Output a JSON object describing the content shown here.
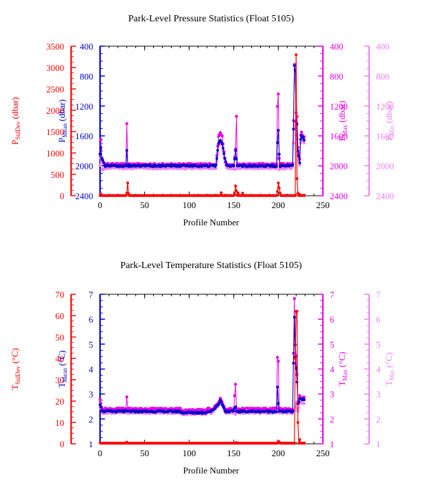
{
  "colors": {
    "red": "#ff0000",
    "blue": "#0000cc",
    "magenta": "#e600e6",
    "pink": "#ee82ee",
    "black": "#000000"
  },
  "footer_text": "",
  "chart_data": [
    {
      "type": "scatter",
      "title": "Park-Level Pressure Statistics (Float 5105)",
      "xlabel": "Profile Number",
      "xlim": [
        0,
        250
      ],
      "xticks": [
        0,
        50,
        100,
        150,
        200,
        250
      ],
      "axes": {
        "stddev": {
          "label_main": "P",
          "label_sub": "StdDev",
          "label_unit": " (dbar)",
          "lim": [
            0,
            3500
          ],
          "ticks": [
            0,
            500,
            1000,
            1500,
            2000,
            2500,
            3000,
            3500
          ],
          "inverted": false
        },
        "mean": {
          "label_main": "P",
          "label_sub": "Mean",
          "label_unit": " (dbar)",
          "lim": [
            400,
            2400
          ],
          "ticks": [
            400,
            800,
            1200,
            1600,
            2000,
            2400
          ],
          "inverted": true
        },
        "max": {
          "label_main": "P",
          "label_sub": "Max",
          "label_unit": " (dbar)",
          "lim": [
            400,
            2400
          ],
          "ticks": [
            400,
            800,
            1200,
            1600,
            2000,
            2400
          ],
          "inverted": true
        },
        "min": {
          "label_main": "P",
          "label_sub": "Min",
          "label_unit": " (dbar)",
          "lim": [
            400,
            2400
          ],
          "ticks": [
            400,
            800,
            1200,
            1600,
            2000,
            2400
          ],
          "inverted": true
        }
      },
      "series": {
        "stddev": {
          "base": 5,
          "spikes": [
            [
              1,
              40
            ],
            [
              30,
              60
            ],
            [
              31,
              300
            ],
            [
              32,
              50
            ],
            [
              136,
              70
            ],
            [
              151,
              40
            ],
            [
              152,
              230
            ],
            [
              153,
              110
            ],
            [
              155,
              60
            ],
            [
              160,
              60
            ],
            [
              199,
              100
            ],
            [
              200,
              300
            ],
            [
              201,
              180
            ],
            [
              202,
              60
            ],
            [
              220,
              3300
            ],
            [
              221,
              400
            ],
            [
              222,
              60
            ],
            [
              224,
              30
            ],
            [
              228,
              10
            ]
          ]
        },
        "mean": {
          "base": 2000,
          "points": [
            [
              0,
              1850
            ],
            [
              1,
              1750
            ],
            [
              2,
              1900
            ],
            [
              5,
              2000
            ],
            [
              29,
              1990
            ],
            [
              30,
              1800
            ],
            [
              31,
              1990
            ],
            [
              130,
              2000
            ],
            [
              133,
              1700
            ],
            [
              135,
              1650
            ],
            [
              137,
              1700
            ],
            [
              140,
              1900
            ],
            [
              142,
              2000
            ],
            [
              150,
              2000
            ],
            [
              152,
              1800
            ],
            [
              154,
              2000
            ],
            [
              198,
              2000
            ],
            [
              199,
              1700
            ],
            [
              200,
              1520
            ],
            [
              201,
              1850
            ],
            [
              202,
              2000
            ],
            [
              216,
              2000
            ],
            [
              217,
              1500
            ],
            [
              218,
              650
            ],
            [
              219,
              740
            ],
            [
              220,
              1400
            ],
            [
              221,
              1450
            ],
            [
              222,
              1800
            ],
            [
              224,
              1950
            ],
            [
              225,
              1650
            ],
            [
              226,
              1600
            ],
            [
              228,
              1620
            ],
            [
              229,
              1650
            ]
          ]
        },
        "max": {
          "base": 1980,
          "points": [
            [
              0,
              1850
            ],
            [
              1,
              1650
            ],
            [
              2,
              1900
            ],
            [
              5,
              1980
            ],
            [
              29,
              1980
            ],
            [
              30,
              1430
            ],
            [
              31,
              1980
            ],
            [
              130,
              1980
            ],
            [
              133,
              1600
            ],
            [
              135,
              1560
            ],
            [
              137,
              1600
            ],
            [
              140,
              1900
            ],
            [
              142,
              1980
            ],
            [
              150,
              1980
            ],
            [
              152,
              1780
            ],
            [
              153,
              1350
            ],
            [
              154,
              1980
            ],
            [
              198,
              1980
            ],
            [
              199,
              1200
            ],
            [
              200,
              1050
            ],
            [
              201,
              1900
            ],
            [
              202,
              1980
            ],
            [
              216,
              1980
            ],
            [
              217,
              1400
            ],
            [
              218,
              640
            ],
            [
              219,
              700
            ],
            [
              220,
              1300
            ],
            [
              221,
              1350
            ],
            [
              222,
              1750
            ],
            [
              224,
              1900
            ],
            [
              225,
              1600
            ],
            [
              226,
              1560
            ],
            [
              228,
              1600
            ],
            [
              229,
              1620
            ]
          ]
        },
        "min": {
          "base": 2030,
          "points": [
            [
              0,
              2000
            ],
            [
              1,
              1900
            ],
            [
              2,
              2050
            ],
            [
              5,
              2030
            ],
            [
              29,
              2030
            ],
            [
              30,
              1990
            ],
            [
              31,
              2030
            ],
            [
              130,
              2030
            ],
            [
              133,
              1720
            ],
            [
              135,
              1680
            ],
            [
              137,
              1720
            ],
            [
              140,
              1950
            ],
            [
              142,
              2030
            ],
            [
              150,
              2030
            ],
            [
              152,
              2050
            ],
            [
              154,
              2030
            ],
            [
              198,
              2030
            ],
            [
              199,
              1900
            ],
            [
              200,
              1850
            ],
            [
              201,
              2050
            ],
            [
              202,
              2030
            ],
            [
              216,
              2030
            ],
            [
              217,
              1700
            ],
            [
              218,
              1400
            ],
            [
              219,
              1500
            ],
            [
              220,
              1600
            ],
            [
              221,
              1650
            ],
            [
              222,
              1850
            ],
            [
              224,
              1980
            ],
            [
              225,
              1700
            ],
            [
              226,
              1650
            ],
            [
              228,
              1660
            ],
            [
              229,
              1700
            ]
          ]
        }
      }
    },
    {
      "type": "scatter",
      "title": "Park-Level Temperature Statistics (Float 5105)",
      "xlabel": "Profile Number",
      "xlim": [
        0,
        250
      ],
      "xticks": [
        0,
        50,
        100,
        150,
        200,
        250
      ],
      "axes": {
        "stddev": {
          "label_main": "T",
          "label_sub": "StdDev",
          "label_unit": " (°C)",
          "lim": [
            0,
            70
          ],
          "ticks": [
            0,
            10,
            20,
            30,
            40,
            50,
            60,
            70
          ],
          "inverted": false
        },
        "mean": {
          "label_main": "T",
          "label_sub": "Mean",
          "label_unit": " (°C)",
          "lim": [
            1,
            7
          ],
          "ticks": [
            1,
            2,
            3,
            4,
            5,
            6,
            7
          ],
          "inverted": false
        },
        "max": {
          "label_main": "T",
          "label_sub": "Max",
          "label_unit": " (°C)",
          "lim": [
            1,
            7
          ],
          "ticks": [
            1,
            2,
            3,
            4,
            5,
            6,
            7
          ],
          "inverted": false
        },
        "min": {
          "label_main": "T",
          "label_sub": "Min",
          "label_unit": " (°C)",
          "lim": [
            1,
            7
          ],
          "ticks": [
            1,
            2,
            3,
            4,
            5,
            6,
            7
          ],
          "inverted": false
        }
      },
      "series": {
        "stddev": {
          "base": 0.3,
          "spikes": [
            [
              0,
              0.5
            ],
            [
              30,
              0.8
            ],
            [
              153,
              0.6
            ],
            [
              200,
              1.2
            ],
            [
              201,
              0.8
            ],
            [
              219,
              40
            ],
            [
              220,
              62
            ],
            [
              221,
              62
            ],
            [
              222,
              10
            ],
            [
              224,
              2
            ]
          ]
        },
        "mean": {
          "base": 2.3,
          "points": [
            [
              0,
              2.6
            ],
            [
              1,
              2.5
            ],
            [
              2,
              2.35
            ],
            [
              30,
              2.35
            ],
            [
              100,
              2.25
            ],
            [
              125,
              2.3
            ],
            [
              133,
              2.6
            ],
            [
              135,
              2.75
            ],
            [
              137,
              2.6
            ],
            [
              140,
              2.35
            ],
            [
              150,
              2.3
            ],
            [
              152,
              2.5
            ],
            [
              153,
              2.3
            ],
            [
              198,
              2.3
            ],
            [
              199,
              3.3
            ],
            [
              200,
              2.6
            ],
            [
              201,
              2.3
            ],
            [
              216,
              2.3
            ],
            [
              218,
              6.1
            ],
            [
              219,
              4.5
            ],
            [
              220,
              4.0
            ],
            [
              221,
              3.5
            ],
            [
              222,
              2.6
            ],
            [
              224,
              2.8
            ],
            [
              226,
              2.8
            ],
            [
              228,
              2.8
            ]
          ]
        },
        "max": {
          "base": 2.4,
          "points": [
            [
              0,
              2.8
            ],
            [
              1,
              2.6
            ],
            [
              2,
              2.45
            ],
            [
              29,
              2.4
            ],
            [
              30,
              2.9
            ],
            [
              31,
              2.4
            ],
            [
              100,
              2.3
            ],
            [
              125,
              2.35
            ],
            [
              133,
              2.65
            ],
            [
              135,
              2.8
            ],
            [
              137,
              2.65
            ],
            [
              140,
              2.4
            ],
            [
              150,
              2.4
            ],
            [
              152,
              3.4
            ],
            [
              153,
              2.4
            ],
            [
              198,
              2.4
            ],
            [
              199,
              4.5
            ],
            [
              200,
              4.3
            ],
            [
              201,
              2.4
            ],
            [
              216,
              2.4
            ],
            [
              218,
              6.8
            ],
            [
              219,
              5.0
            ],
            [
              220,
              4.5
            ],
            [
              221,
              3.8
            ],
            [
              222,
              2.7
            ],
            [
              224,
              2.9
            ],
            [
              226,
              2.85
            ],
            [
              228,
              2.85
            ]
          ]
        },
        "min": {
          "base": 2.25,
          "points": [
            [
              0,
              2.5
            ],
            [
              1,
              2.4
            ],
            [
              2,
              2.3
            ],
            [
              30,
              2.25
            ],
            [
              100,
              2.2
            ],
            [
              125,
              2.25
            ],
            [
              133,
              2.55
            ],
            [
              135,
              2.7
            ],
            [
              137,
              2.55
            ],
            [
              140,
              2.3
            ],
            [
              150,
              2.25
            ],
            [
              152,
              2.2
            ],
            [
              153,
              2.25
            ],
            [
              198,
              2.25
            ],
            [
              199,
              2.6
            ],
            [
              200,
              2.4
            ],
            [
              201,
              2.25
            ],
            [
              216,
              2.25
            ],
            [
              218,
              2.3
            ],
            [
              219,
              2.5
            ],
            [
              220,
              2.6
            ],
            [
              221,
              2.4
            ],
            [
              222,
              2.3
            ],
            [
              224,
              2.6
            ],
            [
              226,
              2.7
            ],
            [
              228,
              2.6
            ]
          ]
        }
      }
    }
  ]
}
